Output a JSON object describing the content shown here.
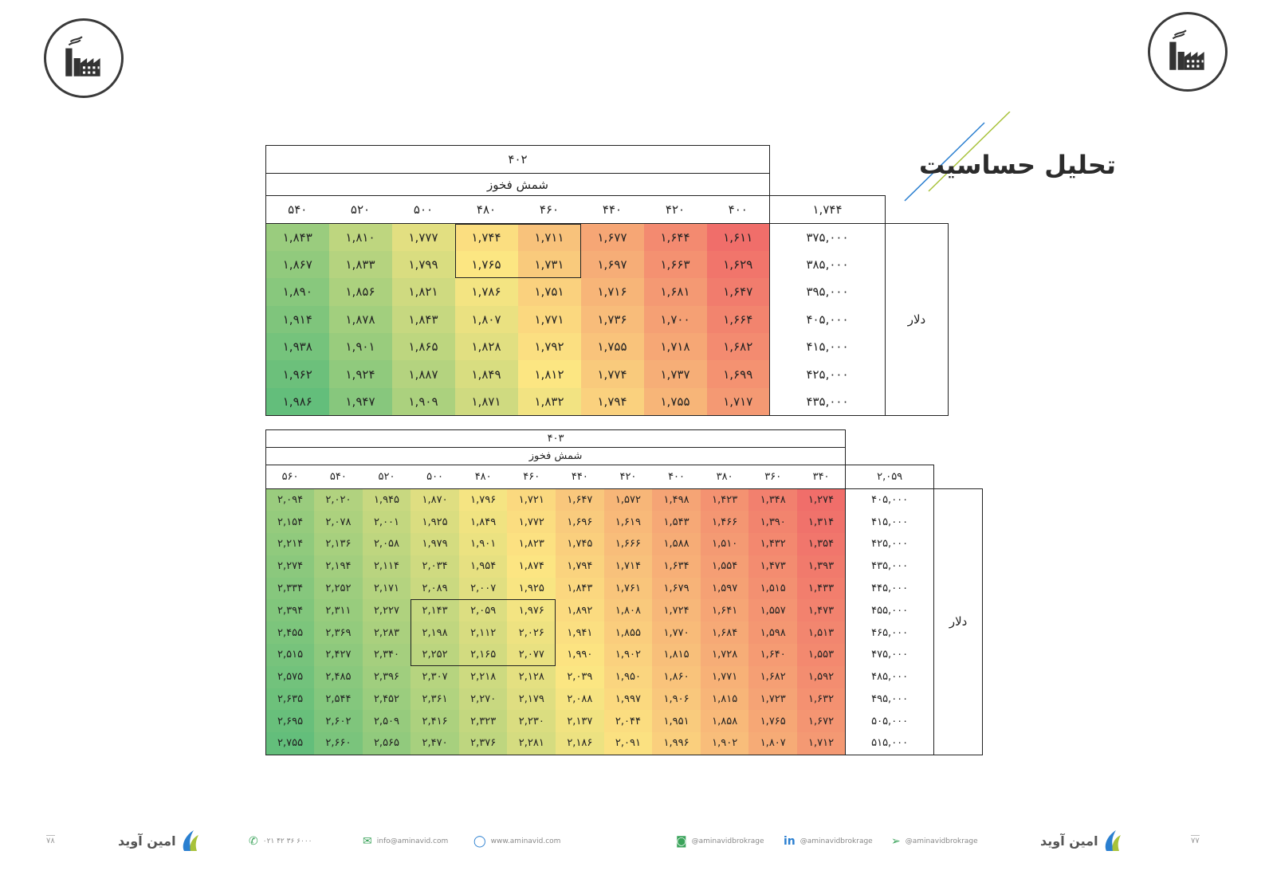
{
  "title": "تحلیل حساسیت",
  "logo_icon": "factory-icon",
  "table1": {
    "top_value": "۴۰۲",
    "col_title": "شمش فخوز",
    "corner": "۱,۷۴۴",
    "row_title": "دلار",
    "columns": [
      "۵۴۰",
      "۵۲۰",
      "۵۰۰",
      "۴۸۰",
      "۴۶۰",
      "۴۴۰",
      "۴۲۰",
      "۴۰۰"
    ],
    "rows": [
      {
        "label": "۳۷۵,۰۰۰",
        "cells": [
          "۱,۸۴۳",
          "۱,۸۱۰",
          "۱,۷۷۷",
          "۱,۷۴۴",
          "۱,۷۱۱",
          "۱,۶۷۷",
          "۱,۶۴۴",
          "۱,۶۱۱"
        ]
      },
      {
        "label": "۳۸۵,۰۰۰",
        "cells": [
          "۱,۸۶۷",
          "۱,۸۳۳",
          "۱,۷۹۹",
          "۱,۷۶۵",
          "۱,۷۳۱",
          "۱,۶۹۷",
          "۱,۶۶۳",
          "۱,۶۲۹"
        ]
      },
      {
        "label": "۳۹۵,۰۰۰",
        "cells": [
          "۱,۸۹۰",
          "۱,۸۵۶",
          "۱,۸۲۱",
          "۱,۷۸۶",
          "۱,۷۵۱",
          "۱,۷۱۶",
          "۱,۶۸۱",
          "۱,۶۴۷"
        ]
      },
      {
        "label": "۴۰۵,۰۰۰",
        "cells": [
          "۱,۹۱۴",
          "۱,۸۷۸",
          "۱,۸۴۳",
          "۱,۸۰۷",
          "۱,۷۷۱",
          "۱,۷۳۶",
          "۱,۷۰۰",
          "۱,۶۶۴"
        ]
      },
      {
        "label": "۴۱۵,۰۰۰",
        "cells": [
          "۱,۹۳۸",
          "۱,۹۰۱",
          "۱,۸۶۵",
          "۱,۸۲۸",
          "۱,۷۹۲",
          "۱,۷۵۵",
          "۱,۷۱۸",
          "۱,۶۸۲"
        ]
      },
      {
        "label": "۴۲۵,۰۰۰",
        "cells": [
          "۱,۹۶۲",
          "۱,۹۲۴",
          "۱,۸۸۷",
          "۱,۸۴۹",
          "۱,۸۱۲",
          "۱,۷۷۴",
          "۱,۷۳۷",
          "۱,۶۹۹"
        ]
      },
      {
        "label": "۴۳۵,۰۰۰",
        "cells": [
          "۱,۹۸۶",
          "۱,۹۴۷",
          "۱,۹۰۹",
          "۱,۸۷۱",
          "۱,۸۳۲",
          "۱,۷۹۴",
          "۱,۷۵۵",
          "۱,۷۱۷"
        ]
      }
    ]
  },
  "table2": {
    "top_value": "۴۰۳",
    "col_title": "شمش فخوز",
    "corner": "۲,۰۵۹",
    "row_title": "دلار",
    "columns": [
      "۵۶۰",
      "۵۴۰",
      "۵۲۰",
      "۵۰۰",
      "۴۸۰",
      "۴۶۰",
      "۴۴۰",
      "۴۲۰",
      "۴۰۰",
      "۳۸۰",
      "۳۶۰",
      "۳۴۰"
    ],
    "rows": [
      {
        "label": "۴۰۵,۰۰۰",
        "cells": [
          "۲,۰۹۴",
          "۲,۰۲۰",
          "۱,۹۴۵",
          "۱,۸۷۰",
          "۱,۷۹۶",
          "۱,۷۲۱",
          "۱,۶۴۷",
          "۱,۵۷۲",
          "۱,۴۹۸",
          "۱,۴۲۳",
          "۱,۳۴۸",
          "۱,۲۷۴"
        ]
      },
      {
        "label": "۴۱۵,۰۰۰",
        "cells": [
          "۲,۱۵۴",
          "۲,۰۷۸",
          "۲,۰۰۱",
          "۱,۹۲۵",
          "۱,۸۴۹",
          "۱,۷۷۲",
          "۱,۶۹۶",
          "۱,۶۱۹",
          "۱,۵۴۳",
          "۱,۴۶۶",
          "۱,۳۹۰",
          "۱,۳۱۴"
        ]
      },
      {
        "label": "۴۲۵,۰۰۰",
        "cells": [
          "۲,۲۱۴",
          "۲,۱۳۶",
          "۲,۰۵۸",
          "۱,۹۷۹",
          "۱,۹۰۱",
          "۱,۸۲۳",
          "۱,۷۴۵",
          "۱,۶۶۶",
          "۱,۵۸۸",
          "۱,۵۱۰",
          "۱,۴۳۲",
          "۱,۳۵۴"
        ]
      },
      {
        "label": "۴۳۵,۰۰۰",
        "cells": [
          "۲,۲۷۴",
          "۲,۱۹۴",
          "۲,۱۱۴",
          "۲,۰۳۴",
          "۱,۹۵۴",
          "۱,۸۷۴",
          "۱,۷۹۴",
          "۱,۷۱۴",
          "۱,۶۳۴",
          "۱,۵۵۴",
          "۱,۴۷۳",
          "۱,۳۹۳"
        ]
      },
      {
        "label": "۴۴۵,۰۰۰",
        "cells": [
          "۲,۳۳۴",
          "۲,۲۵۲",
          "۲,۱۷۱",
          "۲,۰۸۹",
          "۲,۰۰۷",
          "۱,۹۲۵",
          "۱,۸۴۳",
          "۱,۷۶۱",
          "۱,۶۷۹",
          "۱,۵۹۷",
          "۱,۵۱۵",
          "۱,۴۳۳"
        ]
      },
      {
        "label": "۴۵۵,۰۰۰",
        "cells": [
          "۲,۳۹۴",
          "۲,۳۱۱",
          "۲,۲۲۷",
          "۲,۱۴۳",
          "۲,۰۵۹",
          "۱,۹۷۶",
          "۱,۸۹۲",
          "۱,۸۰۸",
          "۱,۷۲۴",
          "۱,۶۴۱",
          "۱,۵۵۷",
          "۱,۴۷۳"
        ]
      },
      {
        "label": "۴۶۵,۰۰۰",
        "cells": [
          "۲,۴۵۵",
          "۲,۳۶۹",
          "۲,۲۸۳",
          "۲,۱۹۸",
          "۲,۱۱۲",
          "۲,۰۲۶",
          "۱,۹۴۱",
          "۱,۸۵۵",
          "۱,۷۷۰",
          "۱,۶۸۴",
          "۱,۵۹۸",
          "۱,۵۱۳"
        ]
      },
      {
        "label": "۴۷۵,۰۰۰",
        "cells": [
          "۲,۵۱۵",
          "۲,۴۲۷",
          "۲,۳۴۰",
          "۲,۲۵۲",
          "۲,۱۶۵",
          "۲,۰۷۷",
          "۱,۹۹۰",
          "۱,۹۰۲",
          "۱,۸۱۵",
          "۱,۷۲۸",
          "۱,۶۴۰",
          "۱,۵۵۳"
        ]
      },
      {
        "label": "۴۸۵,۰۰۰",
        "cells": [
          "۲,۵۷۵",
          "۲,۴۸۵",
          "۲,۳۹۶",
          "۲,۳۰۷",
          "۲,۲۱۸",
          "۲,۱۲۸",
          "۲,۰۳۹",
          "۱,۹۵۰",
          "۱,۸۶۰",
          "۱,۷۷۱",
          "۱,۶۸۲",
          "۱,۵۹۲"
        ]
      },
      {
        "label": "۴۹۵,۰۰۰",
        "cells": [
          "۲,۶۳۵",
          "۲,۵۴۴",
          "۲,۴۵۲",
          "۲,۳۶۱",
          "۲,۲۷۰",
          "۲,۱۷۹",
          "۲,۰۸۸",
          "۱,۹۹۷",
          "۱,۹۰۶",
          "۱,۸۱۵",
          "۱,۷۲۳",
          "۱,۶۳۲"
        ]
      },
      {
        "label": "۵۰۵,۰۰۰",
        "cells": [
          "۲,۶۹۵",
          "۲,۶۰۲",
          "۲,۵۰۹",
          "۲,۴۱۶",
          "۲,۳۲۳",
          "۲,۲۳۰",
          "۲,۱۳۷",
          "۲,۰۴۴",
          "۱,۹۵۱",
          "۱,۸۵۸",
          "۱,۷۶۵",
          "۱,۶۷۲"
        ]
      },
      {
        "label": "۵۱۵,۰۰۰",
        "cells": [
          "۲,۷۵۵",
          "۲,۶۶۰",
          "۲,۵۶۵",
          "۲,۴۷۰",
          "۲,۳۷۶",
          "۲,۲۸۱",
          "۲,۱۸۶",
          "۲,۰۹۱",
          "۱,۹۹۶",
          "۱,۹۰۲",
          "۱,۸۰۷",
          "۱,۷۱۲"
        ]
      }
    ]
  },
  "footer": {
    "page_left": "۷۸",
    "page_right": "۷۷",
    "brand": "امین آوید",
    "phone": "۰۲۱ ۴۲ ۳۶ ۶۰۰۰",
    "email": "info@aminavid.com",
    "website": "www.aminavid.com",
    "instagram": "@aminavidbrokrage",
    "linkedin": "@aminavidbrokrage",
    "telegram": "@aminavidbrokrage"
  }
}
